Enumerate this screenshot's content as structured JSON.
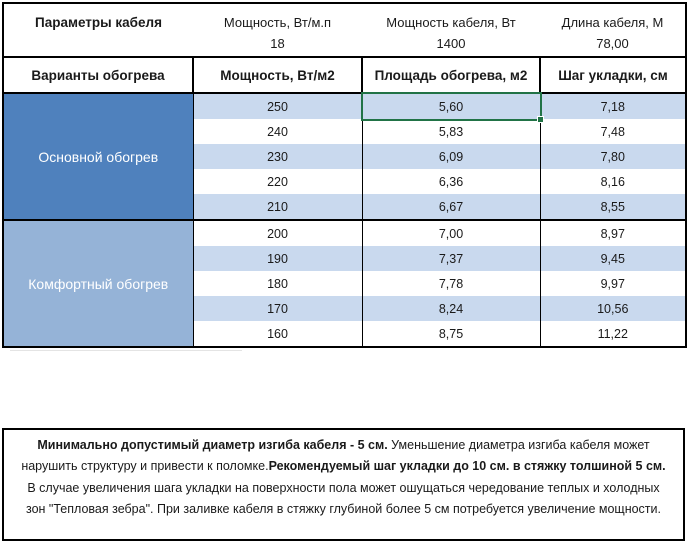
{
  "params": {
    "title": "Параметры кабеля",
    "columns": [
      {
        "label": "Мощность, Вт/м.п",
        "value": "18"
      },
      {
        "label": "Мощность кабеля, Вт",
        "value": "1400"
      },
      {
        "label": "Длина кабеля, М",
        "value": "78,00"
      }
    ]
  },
  "table": {
    "headers": [
      "Варианты обогрева",
      "Мощность, Вт/м2",
      "Площадь обогрева, м2",
      "Шаг укладки, см"
    ],
    "sections": [
      {
        "label": "Основной обогрев",
        "rows": [
          [
            "250",
            "5,60",
            "7,18"
          ],
          [
            "240",
            "5,83",
            "7,48"
          ],
          [
            "230",
            "6,09",
            "7,80"
          ],
          [
            "220",
            "6,36",
            "8,16"
          ],
          [
            "210",
            "6,67",
            "8,55"
          ]
        ]
      },
      {
        "label": "Комфортный обогрев",
        "rows": [
          [
            "200",
            "7,00",
            "8,97"
          ],
          [
            "190",
            "7,37",
            "9,45"
          ],
          [
            "180",
            "7,78",
            "9,97"
          ],
          [
            "170",
            "8,24",
            "10,56"
          ],
          [
            "160",
            "8,75",
            "11,22"
          ]
        ]
      }
    ],
    "selected_cell": {
      "row": 0,
      "col": 1
    }
  },
  "note": {
    "segments": [
      {
        "text": "Минимально допустимый диаметр изгиба кабеля - 5 см.",
        "bold": true
      },
      {
        "text": "  Уменьшение диаметра изгиба кабеля может нарушить структуру и привести к поломке.",
        "bold": false
      },
      {
        "text": "Рекомендуемый шаг укладки до 10 см. в стяжку толшиной 5 см.",
        "bold": true
      },
      {
        "text": " В  случае увеличения шага укладки на поверхности пола может ошущаться чередование теплых и холодных зон \"Тепловая зебра\". При заливке кабеля в стяжку глубиной более 5 см потребуется увеличение мощности.",
        "bold": false
      }
    ]
  },
  "colors": {
    "section_primary": "#4f81bd",
    "section_comfort": "#95b3d7",
    "band_blue": "#c9d9ee",
    "selection_green": "#217346"
  }
}
